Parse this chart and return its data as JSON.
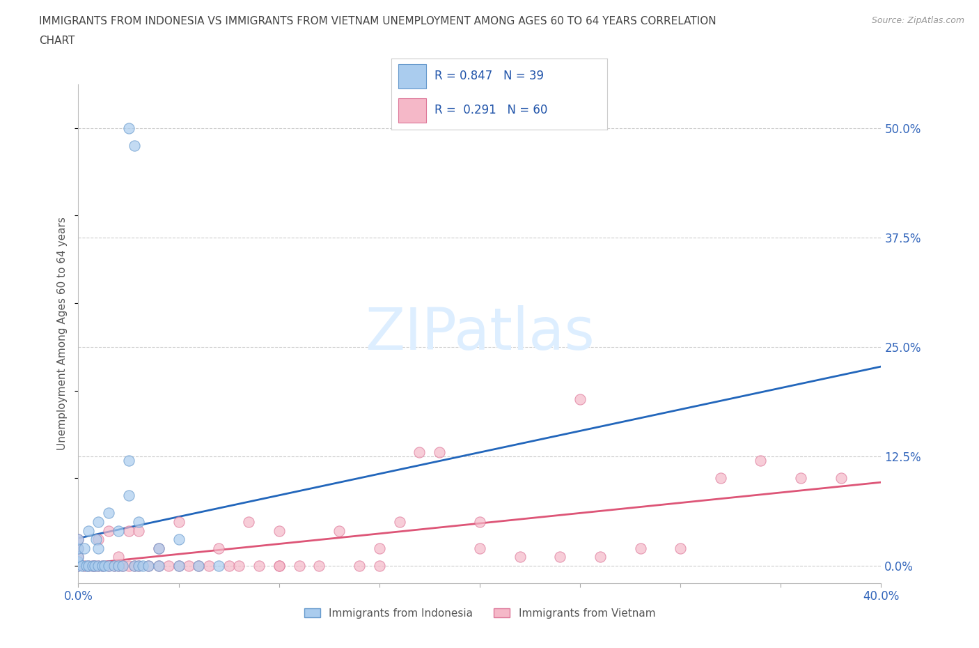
{
  "title_line1": "IMMIGRANTS FROM INDONESIA VS IMMIGRANTS FROM VIETNAM UNEMPLOYMENT AMONG AGES 60 TO 64 YEARS CORRELATION",
  "title_line2": "CHART",
  "source": "Source: ZipAtlas.com",
  "ylabel": "Unemployment Among Ages 60 to 64 years",
  "xlim": [
    0.0,
    0.4
  ],
  "ylim": [
    -0.02,
    0.55
  ],
  "xticks": [
    0.0,
    0.05,
    0.1,
    0.15,
    0.2,
    0.25,
    0.3,
    0.35,
    0.4
  ],
  "xticklabels": [
    "0.0%",
    "",
    "",
    "",
    "",
    "",
    "",
    "",
    "40.0%"
  ],
  "ytick_positions": [
    0.0,
    0.125,
    0.25,
    0.375,
    0.5
  ],
  "yticklabels": [
    "0.0%",
    "12.5%",
    "25.0%",
    "37.5%",
    "50.0%"
  ],
  "indonesia_color": "#aaccee",
  "indonesia_edge": "#6699cc",
  "vietnam_color": "#f5b8c8",
  "vietnam_edge": "#dd7799",
  "indonesia_line_color": "#2266bb",
  "vietnam_line_color": "#dd5577",
  "watermark_text": "ZIPatlas",
  "watermark_color": "#ddeeff",
  "grid_color": "#cccccc",
  "background_color": "#ffffff",
  "title_color": "#444444",
  "axis_label_color": "#555555",
  "tick_color_right": "#3366bb",
  "tick_color_bottom": "#3366bb",
  "legend_border_color": "#cccccc",
  "legend_text_color": "#2255aa",
  "indo_x": [
    0.0,
    0.0,
    0.0,
    0.0,
    0.0,
    0.002,
    0.003,
    0.004,
    0.005,
    0.005,
    0.007,
    0.008,
    0.009,
    0.01,
    0.01,
    0.01,
    0.012,
    0.013,
    0.015,
    0.015,
    0.018,
    0.02,
    0.02,
    0.022,
    0.025,
    0.025,
    0.028,
    0.03,
    0.03,
    0.032,
    0.035,
    0.04,
    0.04,
    0.05,
    0.05,
    0.06,
    0.07,
    0.025,
    0.028
  ],
  "indo_y": [
    0.0,
    0.005,
    0.01,
    0.02,
    0.03,
    0.0,
    0.02,
    0.0,
    0.0,
    0.04,
    0.0,
    0.0,
    0.03,
    0.0,
    0.02,
    0.05,
    0.0,
    0.0,
    0.0,
    0.06,
    0.0,
    0.0,
    0.04,
    0.0,
    0.08,
    0.12,
    0.0,
    0.0,
    0.05,
    0.0,
    0.0,
    0.0,
    0.02,
    0.0,
    0.03,
    0.0,
    0.0,
    0.5,
    0.48
  ],
  "viet_x": [
    0.0,
    0.0,
    0.0,
    0.0,
    0.003,
    0.005,
    0.007,
    0.008,
    0.01,
    0.01,
    0.012,
    0.015,
    0.015,
    0.018,
    0.02,
    0.02,
    0.022,
    0.025,
    0.025,
    0.028,
    0.03,
    0.03,
    0.035,
    0.04,
    0.04,
    0.045,
    0.05,
    0.05,
    0.055,
    0.06,
    0.065,
    0.07,
    0.075,
    0.08,
    0.085,
    0.09,
    0.1,
    0.1,
    0.11,
    0.12,
    0.13,
    0.14,
    0.15,
    0.16,
    0.17,
    0.18,
    0.2,
    0.22,
    0.24,
    0.26,
    0.28,
    0.3,
    0.32,
    0.34,
    0.36,
    0.38,
    0.25,
    0.2,
    0.15,
    0.1
  ],
  "viet_y": [
    0.0,
    0.01,
    0.02,
    0.03,
    0.0,
    0.0,
    0.0,
    0.0,
    0.0,
    0.03,
    0.0,
    0.0,
    0.04,
    0.0,
    0.0,
    0.01,
    0.0,
    0.0,
    0.04,
    0.0,
    0.0,
    0.04,
    0.0,
    0.0,
    0.02,
    0.0,
    0.0,
    0.05,
    0.0,
    0.0,
    0.0,
    0.02,
    0.0,
    0.0,
    0.05,
    0.0,
    0.0,
    0.04,
    0.0,
    0.0,
    0.04,
    0.0,
    0.0,
    0.05,
    0.13,
    0.13,
    0.05,
    0.01,
    0.01,
    0.01,
    0.02,
    0.02,
    0.1,
    0.12,
    0.1,
    0.1,
    0.19,
    0.02,
    0.02,
    0.0
  ],
  "marker_size": 120
}
